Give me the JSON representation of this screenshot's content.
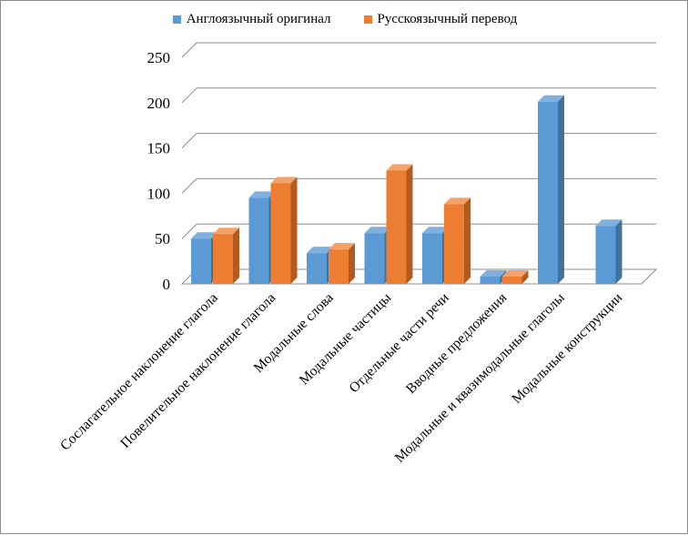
{
  "chart_data": {
    "type": "bar",
    "categories": [
      "Сослагательное наклонение глагола",
      "Повелительное наклонение глагола",
      "Модальные слова",
      "Модальные частицы",
      "Отдельные части речи",
      "Вводные предложения",
      "Модальные и квазимодальные глаголы",
      "Модальные конструкции"
    ],
    "series": [
      {
        "name": "Англоязычный оригинал",
        "values": [
          50,
          95,
          34,
          56,
          56,
          8,
          201,
          64
        ]
      },
      {
        "name": "Русскоязычный перевод",
        "values": [
          55,
          111,
          38,
          125,
          88,
          8,
          null,
          null
        ]
      }
    ],
    "ylim": [
      0,
      250
    ],
    "yticks": [
      "0",
      "50",
      "100",
      "150",
      "200",
      "250"
    ],
    "ytick_values": [
      0,
      50,
      100,
      150,
      200,
      250
    ],
    "grid": true,
    "legend_position": "top",
    "title": "",
    "xlabel": "",
    "ylabel": ""
  },
  "colors": {
    "series": [
      {
        "front": "#5b9bd5",
        "side": "#41719c",
        "top": "#7fb0de"
      },
      {
        "front": "#ed7d31",
        "side": "#b35a1f",
        "top": "#f4a26a"
      }
    ],
    "grid": "#8c8c8c"
  }
}
